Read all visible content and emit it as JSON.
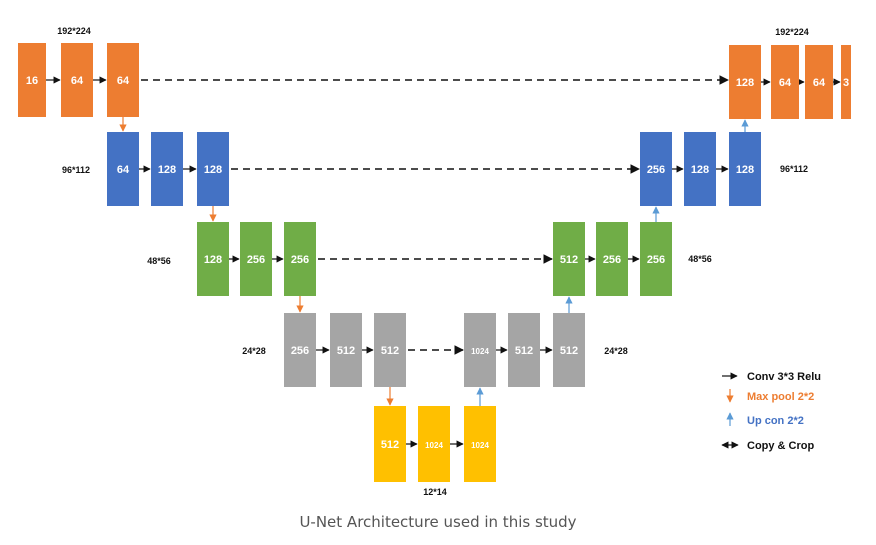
{
  "caption": "U-Net Architecture used in this study",
  "colors": {
    "orange": "#ED7D31",
    "blue": "#4472C4",
    "green": "#70AD47",
    "gray": "#A5A5A5",
    "yellow": "#FFC000"
  },
  "blocks": [
    {
      "label": "16",
      "color": "orange"
    },
    {
      "label": "64",
      "color": "orange"
    },
    {
      "label": "64",
      "color": "orange"
    },
    {
      "label": "64",
      "color": "blue"
    },
    {
      "label": "128",
      "color": "blue"
    },
    {
      "label": "128",
      "color": "blue"
    },
    {
      "label": "128",
      "color": "green"
    },
    {
      "label": "256",
      "color": "green"
    },
    {
      "label": "256",
      "color": "green"
    },
    {
      "label": "256",
      "color": "gray"
    },
    {
      "label": "512",
      "color": "gray"
    },
    {
      "label": "512",
      "color": "gray"
    },
    {
      "label": "512",
      "color": "yellow"
    },
    {
      "label": "1024",
      "color": "yellow"
    },
    {
      "label": "1024",
      "color": "yellow"
    },
    {
      "label": "1024",
      "color": "gray"
    },
    {
      "label": "512",
      "color": "gray"
    },
    {
      "label": "512",
      "color": "gray"
    },
    {
      "label": "512",
      "color": "green"
    },
    {
      "label": "256",
      "color": "green"
    },
    {
      "label": "256",
      "color": "green"
    },
    {
      "label": "256",
      "color": "blue"
    },
    {
      "label": "128",
      "color": "blue"
    },
    {
      "label": "128",
      "color": "blue"
    },
    {
      "label": "128",
      "color": "orange"
    },
    {
      "label": "64",
      "color": "orange"
    },
    {
      "label": "64",
      "color": "orange"
    },
    {
      "label": "3",
      "color": "orange"
    }
  ],
  "dimensions": [
    "192*224",
    "192*224",
    "96*112",
    "96*112",
    "48*56",
    "48*56",
    "24*28",
    "24*28",
    "12*14"
  ],
  "legend": [
    {
      "label": "Conv 3*3 Relu",
      "kind": "conv",
      "color": "#111111"
    },
    {
      "label": "Max pool 2*2",
      "kind": "maxpool",
      "color": "#ED7D31"
    },
    {
      "label": "Up con 2*2",
      "kind": "upconv",
      "color": "#4472C4"
    },
    {
      "label": "Copy & Crop",
      "kind": "copy",
      "color": "#111111"
    }
  ]
}
